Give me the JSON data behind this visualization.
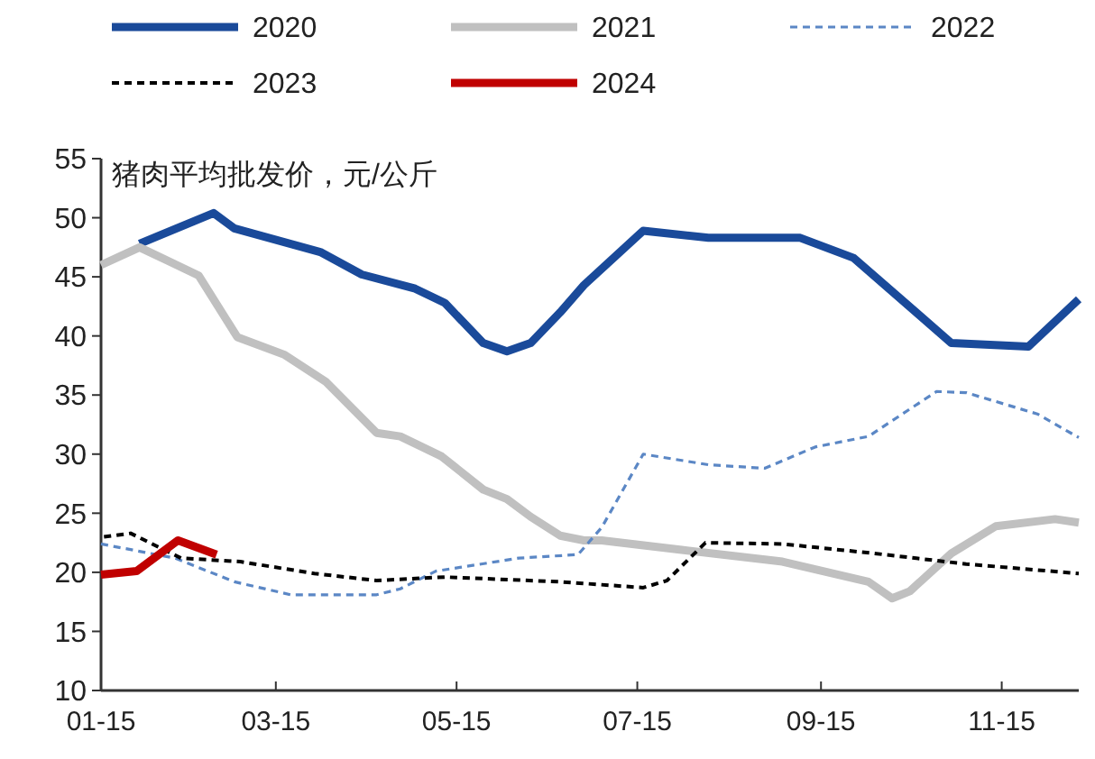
{
  "chart_data": {
    "type": "line",
    "title": "猪肉平均批发价，元/公斤",
    "xlim": [
      "--01-15",
      "--12-11"
    ],
    "xticks": [
      {
        "value": "--01-15",
        "label": "01-15"
      },
      {
        "value": "--03-15",
        "label": "03-15"
      },
      {
        "value": "--05-15",
        "label": "05-15"
      },
      {
        "value": "--07-15",
        "label": "07-15"
      },
      {
        "value": "--09-15",
        "label": "09-15"
      },
      {
        "value": "--11-15",
        "label": "11-15"
      }
    ],
    "ylim": [
      10,
      55
    ],
    "yticks": [
      10,
      15,
      20,
      25,
      30,
      35,
      40,
      45,
      50,
      55
    ],
    "grid": false,
    "legend": "top",
    "marker": "none",
    "series": [
      {
        "name": "2020",
        "color": "#1a4a9a",
        "line_style": "solid",
        "x": [
          "--01-28",
          "--02-22",
          "--03-01",
          "--03-30",
          "--04-13",
          "--05-01",
          "--05-11",
          "--05-24",
          "--06-01",
          "--06-09",
          "--06-19",
          "--06-27",
          "--07-17",
          "--08-08",
          "--09-08",
          "--09-26",
          "--10-29",
          "--11-24",
          "--12-11"
        ],
        "values": [
          47.8,
          50.4,
          49.1,
          47.1,
          45.2,
          44,
          42.8,
          39.4,
          38.7,
          39.4,
          42,
          44.3,
          48.9,
          48.3,
          48.3,
          46.6,
          39.4,
          39.1,
          43.1
        ]
      },
      {
        "name": "2021",
        "color": "#c0c0c0",
        "line_style": "solid",
        "x": [
          "--01-15",
          "--01-28",
          "--02-07",
          "--02-17",
          "--03-02",
          "--03-18",
          "--04-01",
          "--04-18",
          "--04-26",
          "--05-10",
          "--05-24",
          "--06-01",
          "--06-09",
          "--06-19",
          "--06-27",
          "--07-03",
          "--07-30",
          "--09-02",
          "--10-01",
          "--10-09",
          "--10-15",
          "--10-29",
          "--11-13",
          "--12-03",
          "--12-11"
        ],
        "values": [
          46,
          47.5,
          46.3,
          45.1,
          39.9,
          38.4,
          36.1,
          31.8,
          31.5,
          29.8,
          27,
          26.2,
          24.7,
          23.1,
          22.7,
          22.7,
          21.9,
          20.9,
          19.2,
          17.8,
          18.4,
          21.6,
          23.9,
          24.5,
          24.2
        ]
      },
      {
        "name": "2022",
        "color": "#5b87c5",
        "line_style": "dashed",
        "x": [
          "--01-15",
          "--02-09",
          "--03-01",
          "--03-20",
          "--04-18",
          "--04-26",
          "--05-08",
          "--06-05",
          "--06-25",
          "--07-03",
          "--07-17",
          "--08-08",
          "--08-27",
          "--09-13",
          "--10-01",
          "--10-24",
          "--11-03",
          "--11-27",
          "--12-11"
        ],
        "values": [
          22.4,
          21.2,
          19.2,
          18.1,
          18.1,
          18.6,
          20.1,
          21.2,
          21.5,
          23.8,
          30,
          29.1,
          28.8,
          30.6,
          31.5,
          35.3,
          35.2,
          33.4,
          31.4
        ]
      },
      {
        "name": "2023",
        "color": "#000000",
        "line_style": "dashed",
        "x": [
          "--01-16",
          "--01-25",
          "--02-11",
          "--03-03",
          "--03-28",
          "--04-18",
          "--05-11",
          "--06-19",
          "--07-17",
          "--07-25",
          "--08-07",
          "--09-02",
          "--10-03",
          "--11-03",
          "--12-11"
        ],
        "values": [
          23,
          23.3,
          21.2,
          20.9,
          19.9,
          19.3,
          19.6,
          19.2,
          18.7,
          19.3,
          22.5,
          22.4,
          21.6,
          20.7,
          19.9
        ]
      },
      {
        "name": "2024",
        "color": "#c00000",
        "line_style": "solid",
        "x": [
          "--01-15",
          "--01-27",
          "--02-10",
          "--02-23"
        ],
        "values": [
          19.8,
          20.1,
          22.7,
          21.5
        ]
      }
    ]
  }
}
